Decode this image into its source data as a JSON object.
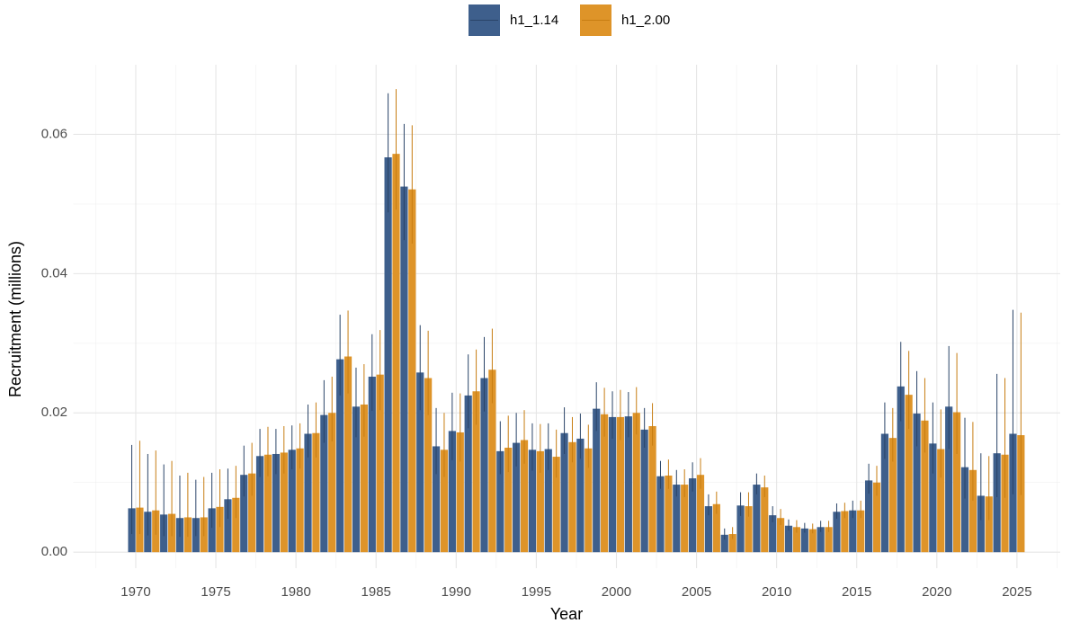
{
  "chart_data": {
    "type": "bar",
    "x_label": "Year",
    "y_label": "Recruitment (millions)",
    "x": [
      1970,
      1971,
      1972,
      1973,
      1974,
      1975,
      1976,
      1977,
      1978,
      1979,
      1980,
      1981,
      1982,
      1983,
      1984,
      1985,
      1986,
      1987,
      1988,
      1989,
      1990,
      1991,
      1992,
      1993,
      1994,
      1995,
      1996,
      1997,
      1998,
      1999,
      2000,
      2001,
      2002,
      2003,
      2004,
      2005,
      2006,
      2007,
      2008,
      2009,
      2010,
      2011,
      2012,
      2013,
      2014,
      2015,
      2016,
      2017,
      2018,
      2019,
      2020,
      2021,
      2022,
      2023,
      2024,
      2025
    ],
    "series": [
      {
        "name": "h1_1.14",
        "color": "#3e5f8c",
        "error_color": "#2a4468",
        "values": [
          0.0063,
          0.0058,
          0.0054,
          0.0049,
          0.0049,
          0.0063,
          0.0076,
          0.0111,
          0.0138,
          0.0141,
          0.0147,
          0.017,
          0.0197,
          0.0277,
          0.0209,
          0.0252,
          0.0567,
          0.0525,
          0.0258,
          0.0152,
          0.0174,
          0.0225,
          0.025,
          0.0145,
          0.0157,
          0.0147,
          0.0148,
          0.0171,
          0.0163,
          0.0206,
          0.0194,
          0.0195,
          0.0176,
          0.0109,
          0.0097,
          0.0106,
          0.0066,
          0.0025,
          0.0067,
          0.0097,
          0.0053,
          0.0038,
          0.0034,
          0.0036,
          0.0058,
          0.006,
          0.0103,
          0.017,
          0.0238,
          0.0199,
          0.0156,
          0.0209,
          0.0122,
          0.0081,
          0.0142,
          0.017
        ],
        "lower": [
          0.0026,
          0.0024,
          0.0023,
          0.0022,
          0.0023,
          0.0035,
          0.0048,
          0.008,
          0.0108,
          0.0112,
          0.0119,
          0.0136,
          0.0157,
          0.0225,
          0.0165,
          0.0203,
          0.0488,
          0.0448,
          0.0204,
          0.0112,
          0.0132,
          0.0178,
          0.0202,
          0.0112,
          0.0123,
          0.0117,
          0.0118,
          0.0141,
          0.0134,
          0.0174,
          0.0163,
          0.0165,
          0.015,
          0.0091,
          0.008,
          0.0087,
          0.0053,
          0.0018,
          0.0052,
          0.0083,
          0.0043,
          0.0031,
          0.0028,
          0.0029,
          0.0048,
          0.0049,
          0.0084,
          0.0134,
          0.0188,
          0.0152,
          0.0113,
          0.0148,
          0.0077,
          0.0046,
          0.0079,
          0.0083
        ],
        "upper": [
          0.0154,
          0.0141,
          0.0126,
          0.011,
          0.0104,
          0.0114,
          0.012,
          0.0153,
          0.0177,
          0.0177,
          0.0182,
          0.0212,
          0.0247,
          0.0341,
          0.0265,
          0.0313,
          0.0659,
          0.0615,
          0.0326,
          0.0207,
          0.0229,
          0.0284,
          0.0309,
          0.0188,
          0.02,
          0.0185,
          0.0185,
          0.0208,
          0.0199,
          0.0244,
          0.0231,
          0.023,
          0.0207,
          0.0131,
          0.0118,
          0.0129,
          0.0083,
          0.0034,
          0.0086,
          0.0113,
          0.0066,
          0.0047,
          0.0042,
          0.0045,
          0.007,
          0.0074,
          0.0127,
          0.0215,
          0.0302,
          0.026,
          0.0215,
          0.0296,
          0.0193,
          0.0142,
          0.0256,
          0.0348
        ]
      },
      {
        "name": "h1_2.00",
        "color": "#de9429",
        "error_color": "#c77d12",
        "values": [
          0.0064,
          0.006,
          0.0055,
          0.005,
          0.005,
          0.0065,
          0.0078,
          0.0113,
          0.014,
          0.0143,
          0.0149,
          0.0171,
          0.02,
          0.0281,
          0.0212,
          0.0255,
          0.0572,
          0.0521,
          0.025,
          0.0147,
          0.0172,
          0.0231,
          0.0262,
          0.015,
          0.0161,
          0.0145,
          0.0137,
          0.0158,
          0.0149,
          0.0198,
          0.0194,
          0.02,
          0.0181,
          0.011,
          0.0097,
          0.0111,
          0.0069,
          0.0026,
          0.0066,
          0.0093,
          0.0049,
          0.0036,
          0.0033,
          0.0036,
          0.0059,
          0.006,
          0.01,
          0.0164,
          0.0226,
          0.0189,
          0.0148,
          0.0201,
          0.0118,
          0.008,
          0.014,
          0.0168
        ],
        "lower": [
          0.0026,
          0.0025,
          0.0023,
          0.0022,
          0.0023,
          0.0036,
          0.0049,
          0.0081,
          0.0109,
          0.0113,
          0.012,
          0.0136,
          0.0159,
          0.0228,
          0.0166,
          0.0204,
          0.0492,
          0.0443,
          0.0197,
          0.0108,
          0.013,
          0.0183,
          0.0214,
          0.0115,
          0.0127,
          0.0114,
          0.0107,
          0.0129,
          0.0121,
          0.0166,
          0.0161,
          0.0169,
          0.0153,
          0.0091,
          0.0079,
          0.0091,
          0.0055,
          0.0019,
          0.0051,
          0.0079,
          0.0039,
          0.0028,
          0.0027,
          0.0029,
          0.0049,
          0.0049,
          0.0081,
          0.013,
          0.0177,
          0.0143,
          0.0107,
          0.0141,
          0.0074,
          0.0046,
          0.0078,
          0.0082
        ],
        "upper": [
          0.016,
          0.0146,
          0.0131,
          0.0114,
          0.0108,
          0.0119,
          0.0124,
          0.0157,
          0.018,
          0.0181,
          0.0185,
          0.0215,
          0.0252,
          0.0347,
          0.027,
          0.0319,
          0.0665,
          0.0613,
          0.0318,
          0.02,
          0.0228,
          0.0291,
          0.0321,
          0.0196,
          0.0204,
          0.0184,
          0.0176,
          0.0194,
          0.0183,
          0.0236,
          0.0233,
          0.0237,
          0.0214,
          0.0133,
          0.0119,
          0.0135,
          0.0087,
          0.0036,
          0.0086,
          0.011,
          0.0062,
          0.0046,
          0.0041,
          0.0045,
          0.0071,
          0.0074,
          0.0124,
          0.0207,
          0.0289,
          0.025,
          0.0205,
          0.0286,
          0.0187,
          0.0138,
          0.025,
          0.0344
        ]
      }
    ],
    "xlim": [
      1966.1,
      2027.7
    ],
    "xticks": [
      1970,
      1975,
      1980,
      1985,
      1990,
      1995,
      2000,
      2005,
      2010,
      2015,
      2020,
      2025
    ],
    "ylim": [
      -0.0023,
      0.07
    ],
    "yticks": [
      {
        "value": 0,
        "label": "0.00"
      },
      0.02,
      0.04,
      0.06
    ],
    "grid": true,
    "legend": "top"
  }
}
